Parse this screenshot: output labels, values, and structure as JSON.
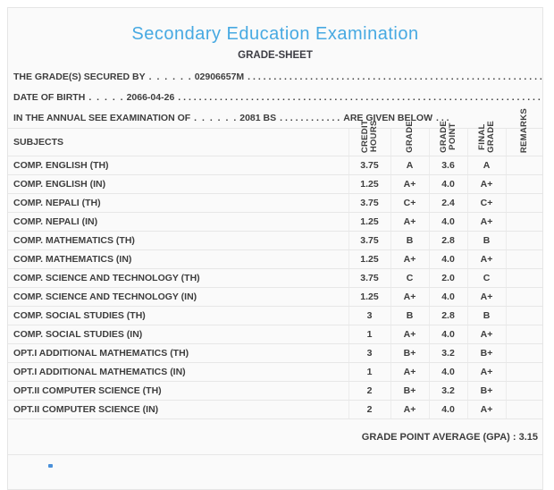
{
  "header": {
    "title": "Secondary Education Examination",
    "subtitle": "GRADE-SHEET"
  },
  "info_lines": {
    "line1": {
      "label": "THE GRADE(S) SECURED BY",
      "dots_lead": ". . . . . .",
      "value": "02906657M",
      "dots_trail": ". . . . . . . . . . . . . . . . . . . . . . . . . . . . . . . . . . . . . . . . . . . . . . . . . . . . . . . . . . . . . . . . . . . . . ."
    },
    "line2": {
      "label": "DATE OF BIRTH",
      "dots_lead": ". . . . .",
      "value": "2066-04-26",
      "dots_trail": ". . . . . . . . . . . . . . . . . . . . . . . . . . . . . . . . . . . . . . . . . . . . . . . . . . . . . . . . . . . . . . . . . . . . . ."
    },
    "line3": {
      "label": "IN THE ANNUAL SEE EXAMINATION OF",
      "dots_lead": ". . . . . .",
      "value": "2081 BS",
      "dots_mid": ". . . . . . . . . . . .",
      "suffix": "ARE GIVEN BELOW",
      "dots_trail": ". . ."
    }
  },
  "table": {
    "columns": {
      "subjects": "SUBJECTS",
      "credit_hours": "CREDIT\nHOURS",
      "grade": "GRADE",
      "grade_point": "GRADE\nPOINT",
      "final_grade": "FINAL\nGRADE",
      "remarks": "REMARKS"
    },
    "rows": [
      {
        "subject": "COMP. ENGLISH (TH)",
        "credit": "3.75",
        "grade": "A",
        "grade_point": "3.6",
        "final_grade": "A",
        "remarks": ""
      },
      {
        "subject": "COMP. ENGLISH (IN)",
        "credit": "1.25",
        "grade": "A+",
        "grade_point": "4.0",
        "final_grade": "A+",
        "remarks": ""
      },
      {
        "subject": "COMP. NEPALI (TH)",
        "credit": "3.75",
        "grade": "C+",
        "grade_point": "2.4",
        "final_grade": "C+",
        "remarks": ""
      },
      {
        "subject": "COMP. NEPALI (IN)",
        "credit": "1.25",
        "grade": "A+",
        "grade_point": "4.0",
        "final_grade": "A+",
        "remarks": ""
      },
      {
        "subject": "COMP. MATHEMATICS (TH)",
        "credit": "3.75",
        "grade": "B",
        "grade_point": "2.8",
        "final_grade": "B",
        "remarks": ""
      },
      {
        "subject": "COMP. MATHEMATICS (IN)",
        "credit": "1.25",
        "grade": "A+",
        "grade_point": "4.0",
        "final_grade": "A+",
        "remarks": ""
      },
      {
        "subject": "COMP. SCIENCE AND TECHNOLOGY (TH)",
        "credit": "3.75",
        "grade": "C",
        "grade_point": "2.0",
        "final_grade": "C",
        "remarks": ""
      },
      {
        "subject": "COMP. SCIENCE AND TECHNOLOGY (IN)",
        "credit": "1.25",
        "grade": "A+",
        "grade_point": "4.0",
        "final_grade": "A+",
        "remarks": ""
      },
      {
        "subject": "COMP. SOCIAL STUDIES (TH)",
        "credit": "3",
        "grade": "B",
        "grade_point": "2.8",
        "final_grade": "B",
        "remarks": ""
      },
      {
        "subject": "COMP. SOCIAL STUDIES (IN)",
        "credit": "1",
        "grade": "A+",
        "grade_point": "4.0",
        "final_grade": "A+",
        "remarks": ""
      },
      {
        "subject": "OPT.I ADDITIONAL MATHEMATICS (TH)",
        "credit": "3",
        "grade": "B+",
        "grade_point": "3.2",
        "final_grade": "B+",
        "remarks": ""
      },
      {
        "subject": "OPT.I ADDITIONAL MATHEMATICS (IN)",
        "credit": "1",
        "grade": "A+",
        "grade_point": "4.0",
        "final_grade": "A+",
        "remarks": ""
      },
      {
        "subject": "OPT.II COMPUTER SCIENCE (TH)",
        "credit": "2",
        "grade": "B+",
        "grade_point": "3.2",
        "final_grade": "B+",
        "remarks": ""
      },
      {
        "subject": "OPT.II COMPUTER SCIENCE (IN)",
        "credit": "2",
        "grade": "A+",
        "grade_point": "4.0",
        "final_grade": "A+",
        "remarks": ""
      }
    ],
    "gpa_label": "GRADE POINT AVERAGE (GPA) : 3.15"
  },
  "colors": {
    "accent_blue": "#47a9e2",
    "text": "#3e3e3e",
    "border": "#e7e7e7",
    "panel_bg": "#fafafa"
  }
}
